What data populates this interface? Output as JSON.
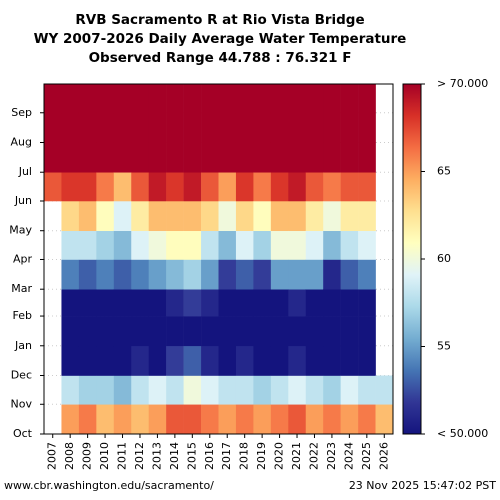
{
  "chart_data": {
    "type": "heatmap",
    "title": [
      "RVB Sacramento R at Rio Vista Bridge",
      "WY 2007-2026 Daily Average Water Temperature",
      "Observed Range 44.788 : 76.321 F"
    ],
    "categories": [
      "2007",
      "2008",
      "2009",
      "2010",
      "2011",
      "2012",
      "2013",
      "2014",
      "2015",
      "2016",
      "2017",
      "2018",
      "2019",
      "2020",
      "2021",
      "2022",
      "2023",
      "2024",
      "2025",
      "2026"
    ],
    "ybins": [
      0,
      31,
      61,
      92,
      123,
      151,
      182,
      212,
      243,
      273,
      304,
      335,
      365
    ],
    "ylim": [
      0,
      365
    ],
    "yticks": [
      {
        "value": 0,
        "label": "Oct"
      },
      {
        "value": 31,
        "label": "Nov"
      },
      {
        "value": 61,
        "label": "Dec"
      },
      {
        "value": 92,
        "label": "Jan"
      },
      {
        "value": 123,
        "label": "Feb"
      },
      {
        "value": 151,
        "label": "Mar"
      },
      {
        "value": 182,
        "label": "Apr"
      },
      {
        "value": 212,
        "label": "May"
      },
      {
        "value": 243,
        "label": "Jun"
      },
      {
        "value": 273,
        "label": "Jul"
      },
      {
        "value": 304,
        "label": "Aug"
      },
      {
        "value": 335,
        "label": "Sep"
      }
    ],
    "grid": true,
    "values": [
      [
        null,
        null,
        null,
        null,
        null,
        null,
        null,
        null,
        67,
        72,
        72,
        71
      ],
      [
        65,
        58,
        50,
        48,
        49,
        54,
        58,
        63,
        68,
        72,
        72,
        71
      ],
      [
        66,
        57,
        49,
        47,
        50,
        53,
        58,
        64,
        68,
        72,
        72,
        71
      ],
      [
        64,
        57,
        50,
        48,
        49,
        54,
        57,
        61,
        66,
        71,
        72,
        71
      ],
      [
        65,
        56,
        49,
        47,
        49,
        53,
        56,
        59,
        64,
        70,
        72,
        71
      ],
      [
        64,
        58,
        51,
        48,
        50,
        54,
        59,
        62,
        67,
        72,
        72,
        71
      ],
      [
        65,
        59,
        50,
        48,
        50,
        55,
        60,
        64,
        69,
        72,
        72,
        71
      ],
      [
        67,
        58,
        52,
        49,
        51,
        56,
        61,
        64,
        68,
        73,
        73,
        71
      ],
      [
        67,
        60,
        53,
        49,
        52,
        57,
        61,
        64,
        69,
        73,
        73,
        71
      ],
      [
        66,
        59,
        51,
        48,
        51,
        55,
        58,
        63,
        67,
        72,
        72,
        71
      ],
      [
        65,
        58,
        49,
        47,
        48,
        52,
        56,
        60,
        65,
        71,
        72,
        71
      ],
      [
        66,
        58,
        51,
        48,
        50,
        53,
        59,
        63,
        68,
        72,
        72,
        71
      ],
      [
        65,
        57,
        50,
        47,
        48,
        52,
        57,
        61,
        66,
        71,
        72,
        71
      ],
      [
        66,
        58,
        50,
        48,
        50,
        55,
        60,
        64,
        68,
        72,
        72,
        71
      ],
      [
        67,
        59,
        51,
        48,
        51,
        55,
        60,
        64,
        69,
        73,
        73,
        71
      ],
      [
        65,
        58,
        50,
        48,
        50,
        55,
        59,
        62,
        67,
        72,
        72,
        71
      ],
      [
        66,
        57,
        49,
        47,
        48,
        51,
        56,
        60,
        66,
        71,
        72,
        71
      ],
      [
        65,
        59,
        50,
        48,
        50,
        53,
        58,
        62,
        67,
        72,
        72,
        71
      ],
      [
        66,
        58,
        50,
        48,
        50,
        54,
        59,
        62,
        67,
        72,
        72,
        71
      ],
      [
        64,
        58,
        null,
        null,
        null,
        null,
        null,
        null,
        null,
        null,
        null,
        null
      ]
    ],
    "zlim": [
      50,
      70
    ],
    "zticks": [
      {
        "value": 50,
        "label": "< 50.000"
      },
      55,
      60,
      65,
      {
        "value": 70,
        "label": "> 70.000"
      }
    ],
    "colormap": [
      "#14147e",
      "#313695",
      "#4575b4",
      "#74add1",
      "#abd9e9",
      "#e0f3f8",
      "#ffffbf",
      "#fee090",
      "#fdae61",
      "#f46d43",
      "#d73027",
      "#a50026"
    ],
    "footer_left": "www.cbr.washington.edu/sacramento/",
    "footer_right": "23 Nov 2025 15:47:02 PST"
  }
}
